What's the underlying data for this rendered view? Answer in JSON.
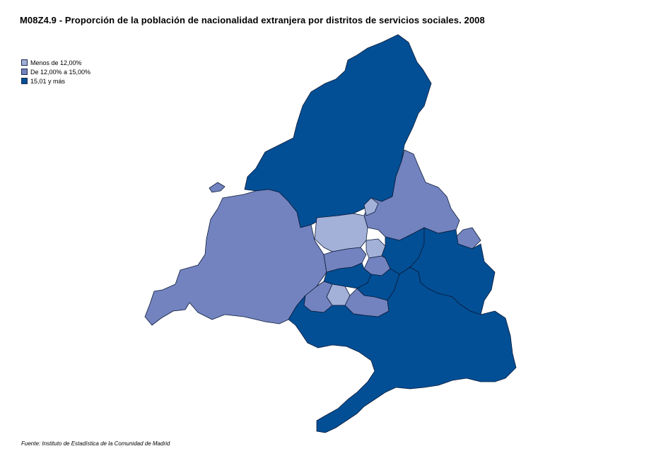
{
  "title": "M08Z4.9 - Proporción de la población de nacionalidad extranjera  por distritos de servicios sociales. 2008",
  "legend": [
    {
      "label": "Menos de 12,00%",
      "color": "#a3b0d8"
    },
    {
      "label": "De 12,00% a 15,00%",
      "color": "#7283bf"
    },
    {
      "label": "15,01 y más",
      "color": "#024f95"
    }
  ],
  "colors": {
    "low": "#a3b0d8",
    "mid": "#7283bf",
    "high": "#024f95",
    "border": "#0d1b3a"
  },
  "source": "Fuente: Instituto de Estadística de la Comunidad de Madrid"
}
